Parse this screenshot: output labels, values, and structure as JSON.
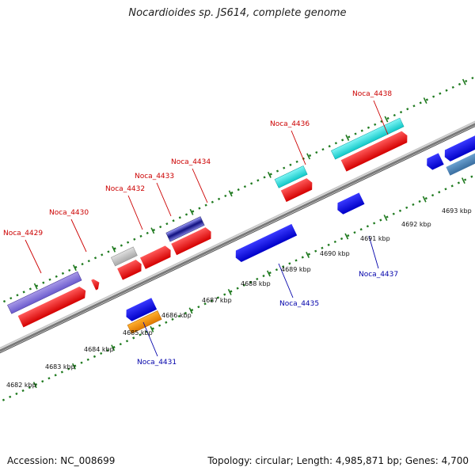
{
  "title": "Nocardioides sp. JS614, complete genome",
  "footer": {
    "accession": "Accession: NC_008699",
    "summary": "Topology: circular; Length: 4,985,871 bp; Genes: 4,700"
  },
  "colors": {
    "forward_label": "#cc0000",
    "reverse_label": "#0000aa",
    "backbone": "#8a8a8a",
    "tick_green": "#1f7a1f"
  },
  "kbp_labels": [
    "4682 kbp",
    "4683 kbp",
    "4684 kbp",
    "4685 kbp",
    "4686 kbp",
    "4687 kbp",
    "4688 kbp",
    "4689 kbp",
    "4690 kbp",
    "4691 kbp",
    "4692 kbp",
    "4693 kbp"
  ],
  "gene_labels": {
    "forward": [
      "Noca_4429",
      "Noca_4430",
      "Noca_4432",
      "Noca_4433",
      "Noca_4434",
      "Noca_4436",
      "Noca_4438"
    ],
    "reverse": [
      "Noca_4431",
      "Noca_4435",
      "Noca_4437"
    ]
  }
}
